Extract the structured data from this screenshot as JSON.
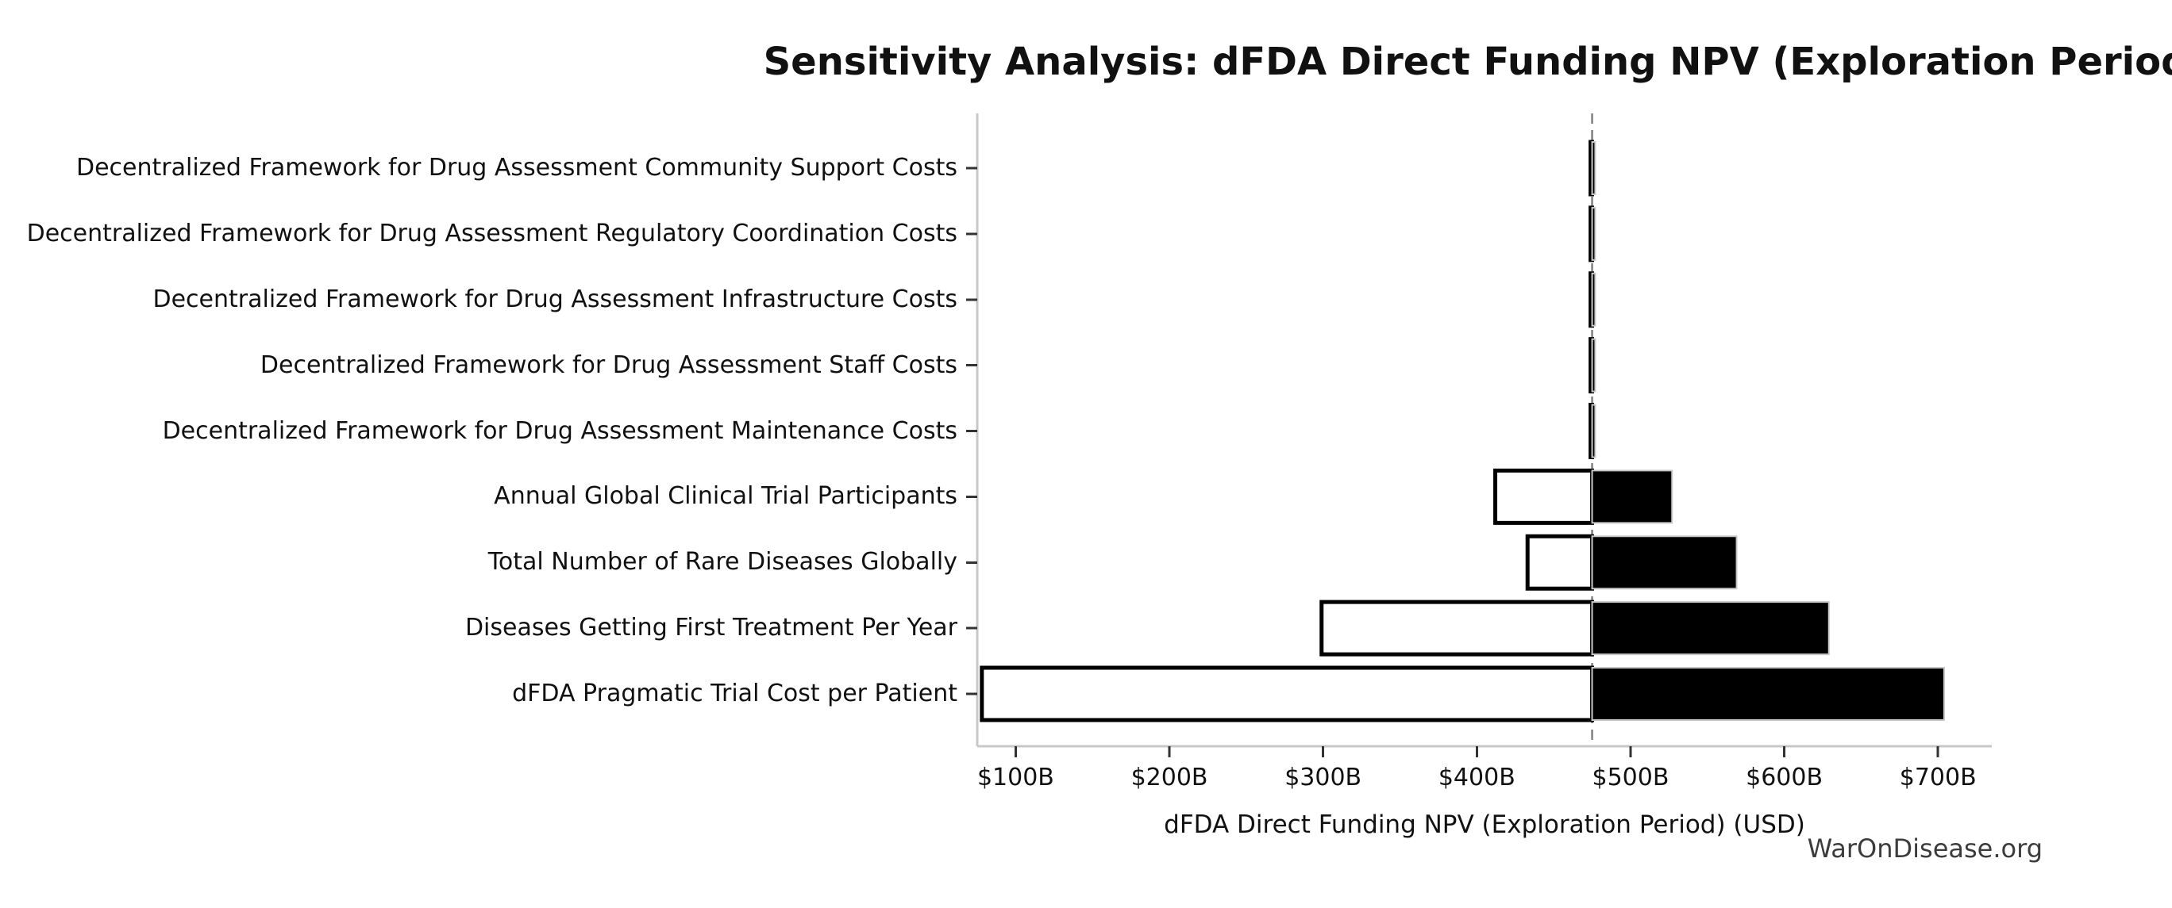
{
  "chart_data": {
    "type": "bar",
    "variant": "tornado-sensitivity",
    "title": "Sensitivity Analysis: dFDA Direct Funding NPV (Exploration Period)",
    "xlabel": "dFDA Direct Funding NPV (Exploration Period) (USD)",
    "watermark": "WarOnDisease.org",
    "values_unit": "billions USD",
    "x_axis": {
      "min": 75,
      "max": 735,
      "ticks": [
        {
          "value": 100,
          "label": "$100B"
        },
        {
          "value": 200,
          "label": "$200B"
        },
        {
          "value": 300,
          "label": "$300B"
        },
        {
          "value": 400,
          "label": "$400B"
        },
        {
          "value": 500,
          "label": "$500B"
        },
        {
          "value": 600,
          "label": "$600B"
        },
        {
          "value": 700,
          "label": "$700B"
        }
      ]
    },
    "baseline": {
      "value": 475,
      "style": "dashed"
    },
    "bars": [
      {
        "label": "Decentralized Framework for Drug Assessment Community Support Costs",
        "low": 474,
        "high": 477
      },
      {
        "label": "Decentralized Framework for Drug Assessment Regulatory Coordination Costs",
        "low": 474,
        "high": 477
      },
      {
        "label": "Decentralized Framework for Drug Assessment Infrastructure Costs",
        "low": 474,
        "high": 477
      },
      {
        "label": "Decentralized Framework for Drug Assessment Staff Costs",
        "low": 474,
        "high": 477
      },
      {
        "label": "Decentralized Framework for Drug Assessment Maintenance Costs",
        "low": 474,
        "high": 477
      },
      {
        "label": "Annual Global Clinical Trial Participants",
        "low": 412,
        "high": 527
      },
      {
        "label": "Total Number of Rare Diseases Globally",
        "low": 433,
        "high": 569
      },
      {
        "label": "Diseases Getting First Treatment Per Year",
        "low": 299,
        "high": 629
      },
      {
        "label": "dFDA Pragmatic Trial Cost per Patient",
        "low": 78,
        "high": 704
      }
    ],
    "colors": {
      "low_fill": "#ffffff",
      "high_fill": "#000000",
      "bar_edge": "#000000",
      "high_bar_edge": "#c8c8c8",
      "baseline_line": "#808080",
      "spine": "#c8c8c8",
      "tick": "#333333",
      "text": "#111111",
      "watermark_text": "#3c3c3c"
    },
    "grid": false,
    "legend": false
  }
}
